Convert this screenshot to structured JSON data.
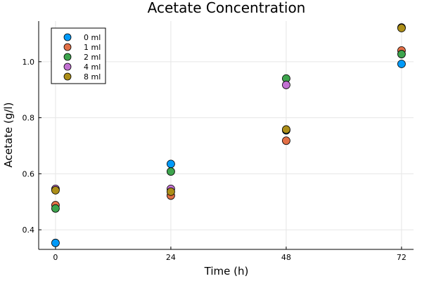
{
  "chart_data": {
    "type": "scatter",
    "title": "Acetate Concentration",
    "xlabel": "Time (h)",
    "ylabel": "Acetate (g/l)",
    "xlim": [
      -3.5,
      74.5
    ],
    "ylim": [
      0.33,
      1.145
    ],
    "xticks": [
      0,
      24,
      48,
      72
    ],
    "xtick_labels": [
      "0",
      "24",
      "48",
      "72"
    ],
    "yticks": [
      0.4,
      0.6,
      0.8,
      1.0
    ],
    "ytick_labels": [
      "0.4",
      "0.6",
      "0.8",
      "1.0"
    ],
    "grid": true,
    "legend_position": "top-left",
    "series": [
      {
        "name": "0 ml",
        "color": "#009af9",
        "x": [
          0,
          24,
          48,
          72
        ],
        "y": [
          0.353,
          0.635,
          0.755,
          0.992
        ]
      },
      {
        "name": "1 ml",
        "color": "#e26f46",
        "x": [
          0,
          24,
          48,
          72
        ],
        "y": [
          0.488,
          0.522,
          0.718,
          1.04
        ]
      },
      {
        "name": "2 ml",
        "color": "#3da44d",
        "x": [
          0,
          24,
          48,
          72
        ],
        "y": [
          0.476,
          0.608,
          0.94,
          1.027
        ]
      },
      {
        "name": "4 ml",
        "color": "#c271d2",
        "x": [
          0,
          24,
          48,
          72
        ],
        "y": [
          0.546,
          0.546,
          0.917,
          1.122
        ]
      },
      {
        "name": "8 ml",
        "color": "#ac8e18",
        "x": [
          0,
          24,
          48,
          72
        ],
        "y": [
          0.541,
          0.536,
          0.758,
          1.12
        ]
      }
    ]
  }
}
